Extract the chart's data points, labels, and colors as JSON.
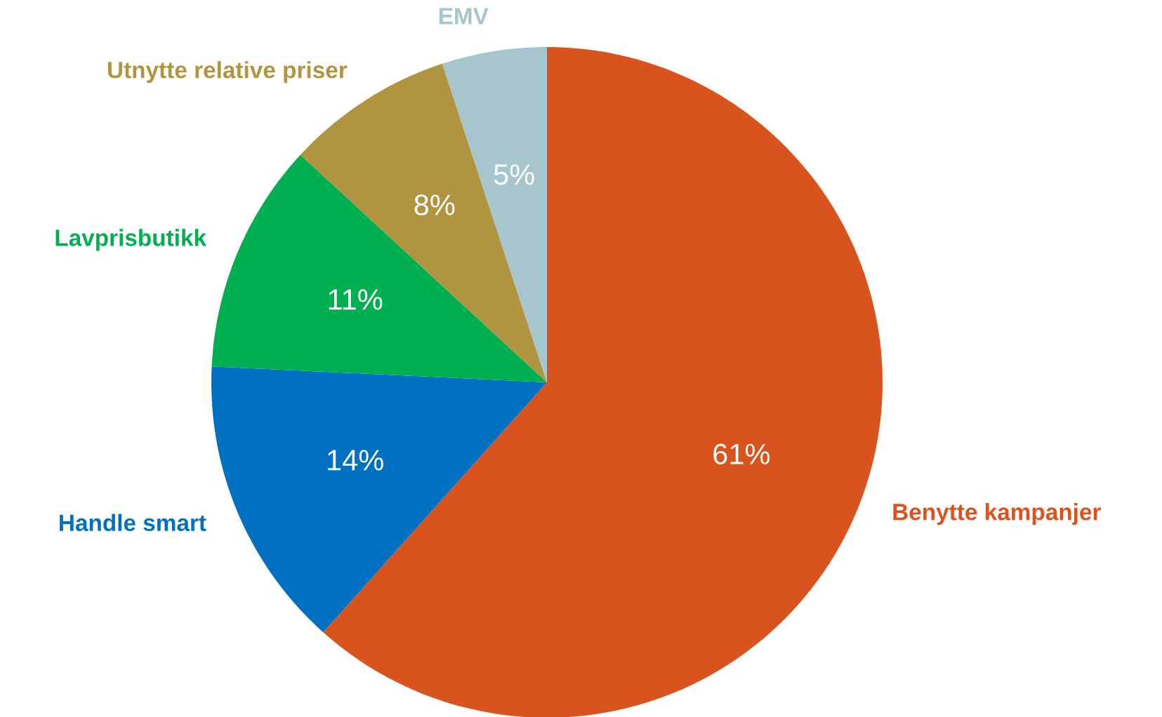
{
  "chart_data": {
    "type": "pie",
    "categories": [
      "Benytte kampanjer",
      "Handle smart",
      "Lavprisbutikk",
      "Utnytte relative priser",
      "EMV"
    ],
    "values": [
      61,
      14,
      11,
      8,
      5
    ],
    "colors": [
      "#d9531e",
      "#0070c0",
      "#00b050",
      "#b09440",
      "#a6c5cc"
    ],
    "value_labels": [
      "61%",
      "14%",
      "11%",
      "8%",
      "5%"
    ],
    "legend": false
  }
}
